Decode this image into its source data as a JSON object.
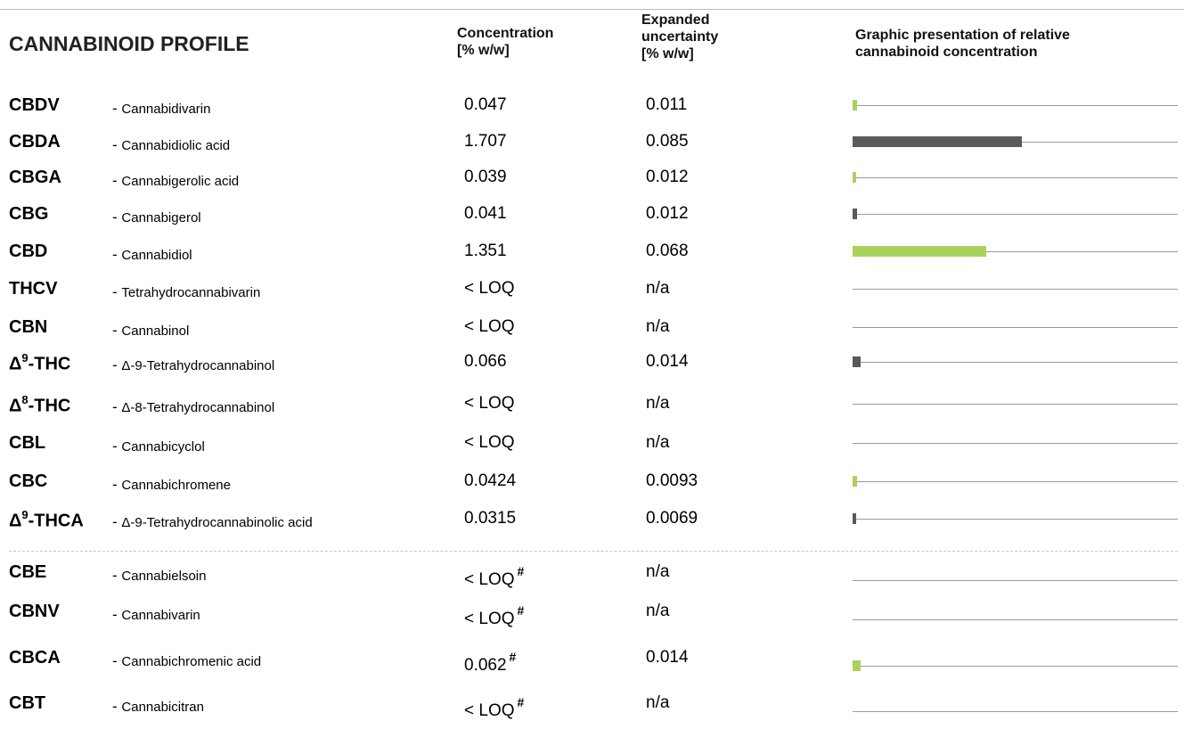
{
  "title": "CANNABINOID PROFILE",
  "headers": {
    "concentration": [
      "Concentration",
      "[% w/w]"
    ],
    "uncertainty": [
      "Expanded",
      "uncertainty",
      "[% w/w]"
    ],
    "graphic": [
      "Graphic presentation of relative",
      "cannabinoid concentration"
    ]
  },
  "colors": {
    "green": "#a9d25a",
    "gray": "#5a5a5a",
    "line": "#9a9a9a"
  },
  "rows": [
    {
      "abbr": "CBDV",
      "sup": "",
      "abbr_tail": "",
      "name": "Cannabidivarin",
      "conc": "0.047",
      "mark": "",
      "unc": "0.011",
      "bar_value": 0.047,
      "bar_color": "green"
    },
    {
      "abbr": "CBDA",
      "sup": "",
      "abbr_tail": "",
      "name": "Cannabidiolic acid",
      "conc": "1.707",
      "mark": "",
      "unc": "0.085",
      "bar_value": 1.707,
      "bar_color": "gray"
    },
    {
      "abbr": "CBGA",
      "sup": "",
      "abbr_tail": "",
      "name": "Cannabigerolic acid",
      "conc": "0.039",
      "mark": "",
      "unc": "0.012",
      "bar_value": 0.039,
      "bar_color": "green"
    },
    {
      "abbr": "CBG",
      "sup": "",
      "abbr_tail": "",
      "name": "Cannabigerol",
      "conc": "0.041",
      "mark": "",
      "unc": "0.012",
      "bar_value": 0.041,
      "bar_color": "gray"
    },
    {
      "abbr": "CBD",
      "sup": "",
      "abbr_tail": "",
      "name": "Cannabidiol",
      "conc": "1.351",
      "mark": "",
      "unc": "0.068",
      "bar_value": 1.351,
      "bar_color": "green"
    },
    {
      "abbr": "THCV",
      "sup": "",
      "abbr_tail": "",
      "name": "Tetrahydrocannabivarin",
      "conc": "< LOQ",
      "mark": "",
      "unc": "n/a",
      "bar_value": 0,
      "bar_color": "gray"
    },
    {
      "abbr": "CBN",
      "sup": "",
      "abbr_tail": "",
      "name": "Cannabinol",
      "conc": "< LOQ",
      "mark": "",
      "unc": "n/a",
      "bar_value": 0,
      "bar_color": "gray"
    },
    {
      "abbr": "Δ",
      "sup": "9",
      "abbr_tail": "-THC",
      "name": "Δ-9-Tetrahydrocannabinol",
      "conc": "0.066",
      "mark": "",
      "unc": "0.014",
      "bar_value": 0.066,
      "bar_color": "gray"
    },
    {
      "abbr": "Δ",
      "sup": "8",
      "abbr_tail": "-THC",
      "name": "Δ-8-Tetrahydrocannabinol",
      "conc": "< LOQ",
      "mark": "",
      "unc": "n/a",
      "bar_value": 0,
      "bar_color": "gray"
    },
    {
      "abbr": "CBL",
      "sup": "",
      "abbr_tail": "",
      "name": "Cannabicyclol",
      "conc": "< LOQ",
      "mark": "",
      "unc": "n/a",
      "bar_value": 0,
      "bar_color": "gray"
    },
    {
      "abbr": "CBC",
      "sup": "",
      "abbr_tail": "",
      "name": "Cannabichromene",
      "conc": "0.0424",
      "mark": "",
      "unc": "0.0093",
      "bar_value": 0.0424,
      "bar_color": "green"
    },
    {
      "abbr": "Δ",
      "sup": "9",
      "abbr_tail": "-THCA",
      "name": "Δ-9-Tetrahydrocannabinolic acid",
      "conc": "0.0315",
      "mark": "",
      "unc": "0.0069",
      "bar_value": 0.0315,
      "bar_color": "gray"
    },
    {
      "abbr": "CBE",
      "sup": "",
      "abbr_tail": "",
      "name": "Cannabielsoin",
      "conc": "< LOQ",
      "mark": "#",
      "unc": "n/a",
      "bar_value": 0,
      "bar_color": "gray"
    },
    {
      "abbr": "CBNV",
      "sup": "",
      "abbr_tail": "",
      "name": "Cannabivarin",
      "conc": "< LOQ",
      "mark": "#",
      "unc": "n/a",
      "bar_value": 0,
      "bar_color": "gray"
    },
    {
      "abbr": "CBCA",
      "sup": "",
      "abbr_tail": "",
      "name": "Cannabichromenic acid",
      "conc": "0.062",
      "mark": "#",
      "unc": "0.014",
      "bar_value": 0.062,
      "bar_color": "green"
    },
    {
      "abbr": "CBT",
      "sup": "",
      "abbr_tail": "",
      "name": "Cannabicitran",
      "conc": "< LOQ",
      "mark": "#",
      "unc": "n/a",
      "bar_value": 0,
      "bar_color": "gray"
    }
  ]
}
